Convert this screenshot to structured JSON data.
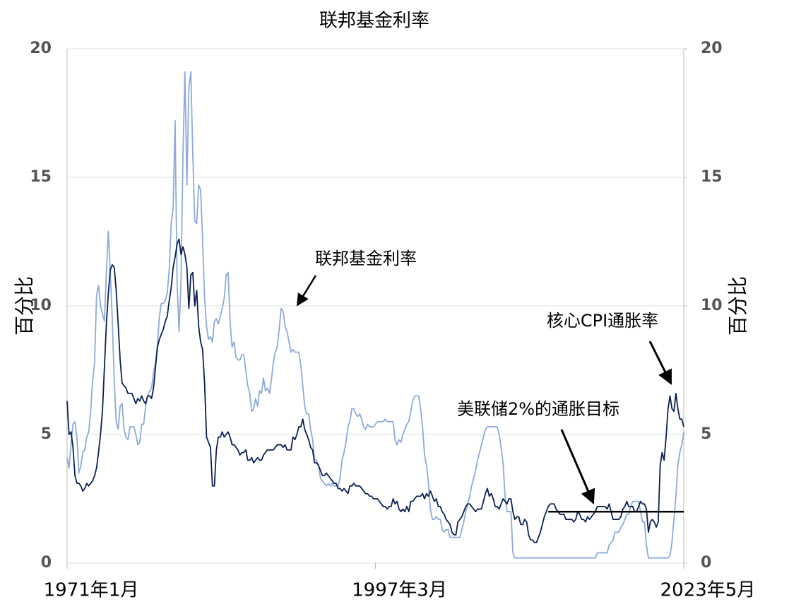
{
  "chart_data": {
    "type": "line",
    "title": "联邦基金利率",
    "y_label": "百分比",
    "y2_label": "百分比",
    "categories": [
      "1971年1月",
      null,
      null,
      null,
      null,
      null,
      null,
      null,
      null,
      null,
      null,
      null,
      null,
      null,
      null,
      null,
      null,
      null,
      null,
      null,
      null,
      null,
      null,
      null,
      null,
      null,
      null,
      null,
      null,
      null,
      null,
      null,
      null,
      null,
      null,
      null,
      null,
      null,
      null,
      null,
      null,
      null,
      null,
      null,
      null,
      null,
      null,
      null,
      null,
      null,
      null,
      null,
      null,
      null,
      null,
      null,
      null,
      null,
      null,
      null,
      null,
      null,
      null,
      null,
      null,
      null,
      null,
      null,
      null,
      null,
      null,
      null,
      null,
      null,
      null,
      null,
      null,
      null,
      null,
      null,
      null,
      null,
      null,
      null,
      null,
      null,
      null,
      null,
      null,
      null,
      null,
      null,
      null,
      null,
      null,
      null,
      null,
      null,
      null,
      null,
      null,
      null,
      null,
      null,
      null,
      null,
      null,
      null,
      null,
      null,
      null,
      null,
      null,
      null,
      null,
      null,
      null,
      null,
      null,
      null,
      null,
      null,
      null,
      null,
      null,
      null,
      null,
      null,
      null,
      null,
      null,
      null,
      null,
      null,
      null,
      null,
      null,
      null,
      null,
      null,
      null,
      null,
      null,
      null,
      null,
      null,
      null,
      null,
      null,
      null,
      null,
      null,
      null,
      null,
      null,
      null,
      null,
      "1997年3月",
      null,
      null,
      null,
      null,
      null,
      null,
      null,
      null,
      null,
      null,
      null,
      null,
      null,
      null,
      null,
      null,
      null,
      null,
      null,
      null,
      null,
      null,
      null,
      null,
      null,
      null,
      null,
      null,
      null,
      null,
      null,
      null,
      null,
      null,
      null,
      null,
      null,
      null,
      null,
      null,
      null,
      null,
      null,
      null,
      null,
      null,
      null,
      null,
      null,
      null,
      null,
      null,
      null,
      null,
      null,
      null,
      null,
      null,
      null,
      null,
      null,
      null,
      null,
      null,
      null,
      null,
      null,
      null,
      null,
      null,
      null,
      null,
      null,
      null,
      null,
      null,
      null,
      null,
      null,
      null,
      null,
      null,
      null,
      null,
      null,
      null,
      null,
      null,
      null,
      null,
      null,
      null,
      null,
      null,
      null,
      null,
      null,
      null,
      null,
      null,
      null,
      null,
      null,
      null,
      null,
      null,
      null,
      null,
      null,
      null,
      null,
      null,
      null,
      null,
      null,
      null,
      null,
      null,
      null,
      null,
      null,
      null,
      null,
      null,
      null,
      null,
      null,
      null,
      null,
      null,
      null,
      null,
      null,
      null,
      null,
      null,
      null,
      null,
      null,
      null,
      null,
      null,
      null,
      null,
      null,
      null,
      null,
      null,
      null,
      null,
      null,
      null,
      null,
      null,
      null,
      null,
      "2023年5月"
    ],
    "series": [
      {
        "color": "#8eaadb",
        "values": [
          4.1,
          3.7,
          4.6,
          5.4,
          5.5,
          4.9,
          3.5,
          3.8,
          4.3,
          4.4,
          4.9,
          5.1,
          5.9,
          7.1,
          7.8,
          10.4,
          10.8,
          10.0,
          9.7,
          9.4,
          11.3,
          12.9,
          11.3,
          9.5,
          7.1,
          5.5,
          5.2,
          6.1,
          6.2,
          5.2,
          4.9,
          4.8,
          5.3,
          5.3,
          5.3,
          5.0,
          4.6,
          4.7,
          5.4,
          5.4,
          6.1,
          6.5,
          6.7,
          6.8,
          7.4,
          7.8,
          8.5,
          9.6,
          10.1,
          10.1,
          10.2,
          10.5,
          11.4,
          13.2,
          13.8,
          17.2,
          10.9,
          9.0,
          10.9,
          15.9,
          19.1,
          14.7,
          18.5,
          19.1,
          15.9,
          13.3,
          13.2,
          14.7,
          14.5,
          12.6,
          10.3,
          9.2,
          8.7,
          8.8,
          8.6,
          9.4,
          9.5,
          9.3,
          9.6,
          9.9,
          10.3,
          11.2,
          11.3,
          9.4,
          8.4,
          8.6,
          8.0,
          7.9,
          7.9,
          8.1,
          8.1,
          7.5,
          6.9,
          6.6,
          5.9,
          6.0,
          6.4,
          6.1,
          6.7,
          6.6,
          7.2,
          6.7,
          6.8,
          6.6,
          7.1,
          7.8,
          8.2,
          8.4,
          9.1,
          9.9,
          9.8,
          9.2,
          9.0,
          8.6,
          8.2,
          8.3,
          8.2,
          8.2,
          8.2,
          7.7,
          6.9,
          6.1,
          5.8,
          5.8,
          5.2,
          4.8,
          4.0,
          4.0,
          3.8,
          3.3,
          3.2,
          3.1,
          3.0,
          3.1,
          3.0,
          3.1,
          3.0,
          3.0,
          3.0,
          3.3,
          4.0,
          4.3,
          4.7,
          5.3,
          5.5,
          6.0,
          6.0,
          5.8,
          5.7,
          5.8,
          5.6,
          5.3,
          5.2,
          5.4,
          5.3,
          5.3,
          5.3,
          5.4,
          5.5,
          5.5,
          5.5,
          5.5,
          5.6,
          5.5,
          5.5,
          5.5,
          5.5,
          4.8,
          4.6,
          4.8,
          4.7,
          5.0,
          5.2,
          5.4,
          5.5,
          5.9,
          6.3,
          6.5,
          6.5,
          6.5,
          6.0,
          5.3,
          4.2,
          3.8,
          3.1,
          2.1,
          1.7,
          1.7,
          1.8,
          1.7,
          1.7,
          1.3,
          1.2,
          1.3,
          1.3,
          1.0,
          1.0,
          1.0,
          1.0,
          1.0,
          1.0,
          1.3,
          1.6,
          2.0,
          2.3,
          2.6,
          3.0,
          3.3,
          3.6,
          4.0,
          4.3,
          4.6,
          4.9,
          5.2,
          5.3,
          5.3,
          5.3,
          5.3,
          5.3,
          5.3,
          5.0,
          4.5,
          3.9,
          2.6,
          2.0,
          2.0,
          2.0,
          0.4,
          0.2,
          0.2,
          0.2,
          0.2,
          0.2,
          0.2,
          0.2,
          0.2,
          0.2,
          0.2,
          0.2,
          0.2,
          0.2,
          0.2,
          0.2,
          0.2,
          0.2,
          0.2,
          0.2,
          0.2,
          0.2,
          0.2,
          0.2,
          0.2,
          0.2,
          0.2,
          0.2,
          0.2,
          0.2,
          0.2,
          0.2,
          0.2,
          0.2,
          0.2,
          0.2,
          0.2,
          0.2,
          0.2,
          0.2,
          0.2,
          0.2,
          0.2,
          0.4,
          0.4,
          0.4,
          0.4,
          0.4,
          0.4,
          0.7,
          0.8,
          0.9,
          1.2,
          1.2,
          1.2,
          1.4,
          1.5,
          1.7,
          1.9,
          1.9,
          2.2,
          2.4,
          2.4,
          2.4,
          2.4,
          2.0,
          1.6,
          1.6,
          0.7,
          0.2,
          0.2,
          0.2,
          0.2,
          0.2,
          0.2,
          0.2,
          0.2,
          0.2,
          0.2,
          0.2,
          0.3,
          0.8,
          1.7,
          2.6,
          3.8,
          4.3,
          4.6,
          5.1
        ]
      },
      {
        "color": "#0d2052",
        "values": [
          6.3,
          5.0,
          5.1,
          4.5,
          3.4,
          3.1,
          3.1,
          3.0,
          2.8,
          2.9,
          3.1,
          3.0,
          3.1,
          3.2,
          3.4,
          3.7,
          4.3,
          5.0,
          5.9,
          7.6,
          9.3,
          10.5,
          11.4,
          11.6,
          11.5,
          10.6,
          9.3,
          7.9,
          7.0,
          6.9,
          6.8,
          6.6,
          6.6,
          6.6,
          6.4,
          6.2,
          6.4,
          6.3,
          6.5,
          6.3,
          6.2,
          6.5,
          6.5,
          6.4,
          6.8,
          7.6,
          8.4,
          8.7,
          8.9,
          9.1,
          9.4,
          9.6,
          10.2,
          10.7,
          11.5,
          11.9,
          12.4,
          12.6,
          12.0,
          12.3,
          12.0,
          11.5,
          9.9,
          11.2,
          11.3,
          10.0,
          10.6,
          9.2,
          8.6,
          8.3,
          7.0,
          4.9,
          4.7,
          4.5,
          3.0,
          3.0,
          4.4,
          4.9,
          4.9,
          5.1,
          4.9,
          5.0,
          5.1,
          4.9,
          4.6,
          4.6,
          4.5,
          4.4,
          4.2,
          4.3,
          4.3,
          4.4,
          4.0,
          4.0,
          4.1,
          3.9,
          4.0,
          4.1,
          4.0,
          4.0,
          4.2,
          4.3,
          4.4,
          4.4,
          4.4,
          4.4,
          4.5,
          4.6,
          4.6,
          4.6,
          4.5,
          4.6,
          4.4,
          4.4,
          4.4,
          4.9,
          4.8,
          5.0,
          5.3,
          5.3,
          5.6,
          5.2,
          5.0,
          4.8,
          4.5,
          4.4,
          3.9,
          3.9,
          3.8,
          3.6,
          3.4,
          3.4,
          3.5,
          3.4,
          3.3,
          3.2,
          3.1,
          3.1,
          2.9,
          2.9,
          2.8,
          2.9,
          2.8,
          2.7,
          3.0,
          3.0,
          3.1,
          3.0,
          3.0,
          3.0,
          2.9,
          2.8,
          2.7,
          2.7,
          2.6,
          2.6,
          2.5,
          2.5,
          2.5,
          2.4,
          2.3,
          2.2,
          2.2,
          2.1,
          2.2,
          2.2,
          2.5,
          2.3,
          2.4,
          2.1,
          2.0,
          2.1,
          2.0,
          2.2,
          2.0,
          2.4,
          2.4,
          2.5,
          2.6,
          2.6,
          2.6,
          2.7,
          2.5,
          2.7,
          2.6,
          2.8,
          2.6,
          2.4,
          2.5,
          2.2,
          2.2,
          2.0,
          1.9,
          1.7,
          1.6,
          1.5,
          1.2,
          1.1,
          1.1,
          1.6,
          1.7,
          1.8,
          2.0,
          2.2,
          2.3,
          2.3,
          2.2,
          2.1,
          2.0,
          2.1,
          2.1,
          2.1,
          2.4,
          2.7,
          2.9,
          2.6,
          2.7,
          2.5,
          2.2,
          2.2,
          2.1,
          2.3,
          2.5,
          2.4,
          2.3,
          2.5,
          2.5,
          2.0,
          1.7,
          1.8,
          1.8,
          1.5,
          1.5,
          1.7,
          1.6,
          1.1,
          0.9,
          0.9,
          0.8,
          0.8,
          1.0,
          1.2,
          1.5,
          1.8,
          2.0,
          2.2,
          2.3,
          2.3,
          2.3,
          2.1,
          2.0,
          1.9,
          1.9,
          1.9,
          1.7,
          1.7,
          1.7,
          1.7,
          1.6,
          1.7,
          2.0,
          1.9,
          1.7,
          1.7,
          1.6,
          1.8,
          1.7,
          1.8,
          1.9,
          2.0,
          2.2,
          2.2,
          2.2,
          2.2,
          2.2,
          2.1,
          2.3,
          2.0,
          1.7,
          1.7,
          1.7,
          1.7,
          1.8,
          2.1,
          2.2,
          2.4,
          2.2,
          2.2,
          2.2,
          2.0,
          2.0,
          2.2,
          2.4,
          2.3,
          2.3,
          2.1,
          1.2,
          1.6,
          1.7,
          1.6,
          1.4,
          1.6,
          3.8,
          4.3,
          4.0,
          4.9,
          6.0,
          6.5,
          6.0,
          5.9,
          6.6,
          6.0,
          5.6,
          5.6,
          5.3
        ]
      },
      {
        "color": "#000000",
        "values": [
          null,
          null,
          null,
          null,
          null,
          null,
          null,
          null,
          null,
          null,
          null,
          null,
          null,
          null,
          null,
          null,
          null,
          null,
          null,
          null,
          null,
          null,
          null,
          null,
          null,
          null,
          null,
          null,
          null,
          null,
          null,
          null,
          null,
          null,
          null,
          null,
          null,
          null,
          null,
          null,
          null,
          null,
          null,
          null,
          null,
          null,
          null,
          null,
          null,
          null,
          null,
          null,
          null,
          null,
          null,
          null,
          null,
          null,
          null,
          null,
          null,
          null,
          null,
          null,
          null,
          null,
          null,
          null,
          null,
          null,
          null,
          null,
          null,
          null,
          null,
          null,
          null,
          null,
          null,
          null,
          null,
          null,
          null,
          null,
          null,
          null,
          null,
          null,
          null,
          null,
          null,
          null,
          null,
          null,
          null,
          null,
          null,
          null,
          null,
          null,
          null,
          null,
          null,
          null,
          null,
          null,
          null,
          null,
          null,
          null,
          null,
          null,
          null,
          null,
          null,
          null,
          null,
          null,
          null,
          null,
          null,
          null,
          null,
          null,
          null,
          null,
          null,
          null,
          null,
          null,
          null,
          null,
          null,
          null,
          null,
          null,
          null,
          null,
          null,
          null,
          null,
          null,
          null,
          null,
          null,
          null,
          null,
          null,
          null,
          null,
          null,
          null,
          null,
          null,
          null,
          null,
          null,
          null,
          null,
          null,
          null,
          null,
          null,
          null,
          null,
          null,
          null,
          null,
          null,
          null,
          null,
          null,
          null,
          null,
          null,
          null,
          null,
          null,
          null,
          null,
          null,
          null,
          null,
          null,
          null,
          null,
          null,
          null,
          null,
          null,
          null,
          null,
          null,
          null,
          null,
          null,
          null,
          null,
          null,
          null,
          null,
          null,
          null,
          null,
          null,
          null,
          null,
          null,
          null,
          null,
          null,
          null,
          null,
          null,
          null,
          null,
          null,
          null,
          null,
          null,
          null,
          null,
          null,
          null,
          null,
          null,
          null,
          null,
          null,
          null,
          null,
          null,
          null,
          null,
          null,
          null,
          null,
          null,
          null,
          null,
          null,
          null,
          null,
          null,
          null,
          2,
          2,
          2,
          2,
          2,
          2,
          2,
          2,
          2,
          2,
          2,
          2,
          2,
          2,
          2,
          2,
          2,
          2,
          2,
          2,
          2,
          2,
          2,
          2,
          2,
          2,
          2,
          2,
          2,
          2,
          2,
          2,
          2,
          2,
          2,
          2,
          2,
          2,
          2,
          2,
          2,
          2,
          2,
          2,
          2,
          2,
          2,
          2,
          2,
          2,
          2,
          2,
          2,
          2,
          2,
          2,
          2,
          2,
          2,
          2,
          2,
          2,
          2,
          2,
          2,
          2,
          2,
          2,
          2,
          2
        ]
      }
    ],
    "ylim": [
      0,
      20
    ],
    "yticks": [
      0,
      5,
      10,
      15,
      20
    ],
    "y2lim": [
      0,
      20
    ],
    "y2ticks": [
      0,
      5,
      10,
      15,
      20
    ],
    "grid": true,
    "annotations": [
      "联邦基金利率",
      "美联储2%的通胀目标",
      "核心CPI通胀率"
    ]
  }
}
